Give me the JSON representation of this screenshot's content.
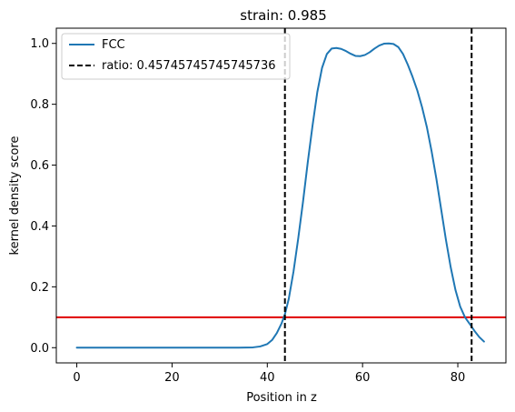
{
  "chart_data": {
    "type": "line",
    "title": "strain: 0.985",
    "xlabel": "Position in z",
    "ylabel": "kernel density score",
    "xlim": [
      -4.3,
      90.1
    ],
    "ylim": [
      -0.05,
      1.05
    ],
    "xticks": [
      0,
      20,
      40,
      60,
      80
    ],
    "yticks": [
      0.0,
      0.2,
      0.4,
      0.6,
      0.8,
      1.0
    ],
    "ytick_labels": [
      "0.0",
      "0.2",
      "0.4",
      "0.6",
      "0.8",
      "1.0"
    ],
    "grid": false,
    "legend_position": "upper-left",
    "series": [
      {
        "name": "FCC",
        "color": "#1f77b4",
        "style": "solid",
        "x": [
          0,
          5,
          10,
          15,
          20,
          25,
          30,
          34,
          37,
          38.5,
          40,
          41,
          42,
          43,
          43.7,
          44.5,
          45.5,
          46.5,
          47.5,
          48.5,
          49.5,
          50.5,
          51.5,
          52.5,
          53.5,
          54.5,
          55.5,
          56.5,
          57.5,
          58.5,
          59.5,
          60.5,
          61.5,
          62.5,
          63.5,
          64.5,
          65.5,
          66.5,
          67.5,
          68.5,
          69.5,
          70.5,
          71.5,
          72.5,
          73.5,
          74.5,
          75.5,
          76.5,
          77.5,
          78.5,
          79.5,
          80.5,
          81.5,
          82.5,
          83.5,
          84.5,
          85.5
        ],
        "y": [
          0.0,
          0.0,
          0.0,
          0.0,
          0.0,
          0.0,
          0.0,
          0.0,
          0.001,
          0.004,
          0.012,
          0.025,
          0.048,
          0.08,
          0.11,
          0.16,
          0.25,
          0.36,
          0.48,
          0.61,
          0.73,
          0.84,
          0.92,
          0.965,
          0.983,
          0.985,
          0.982,
          0.975,
          0.966,
          0.959,
          0.958,
          0.962,
          0.971,
          0.983,
          0.993,
          0.999,
          1.0,
          0.998,
          0.988,
          0.965,
          0.93,
          0.89,
          0.845,
          0.79,
          0.725,
          0.645,
          0.555,
          0.455,
          0.355,
          0.265,
          0.19,
          0.135,
          0.1,
          0.078,
          0.055,
          0.035,
          0.02
        ]
      },
      {
        "name": "ratio: 0.45745745745745736",
        "color": "#000000",
        "style": "dashed",
        "vlines": [
          43.7,
          82.9
        ]
      }
    ],
    "hline": {
      "y": 0.1,
      "color": "#e00000"
    }
  }
}
